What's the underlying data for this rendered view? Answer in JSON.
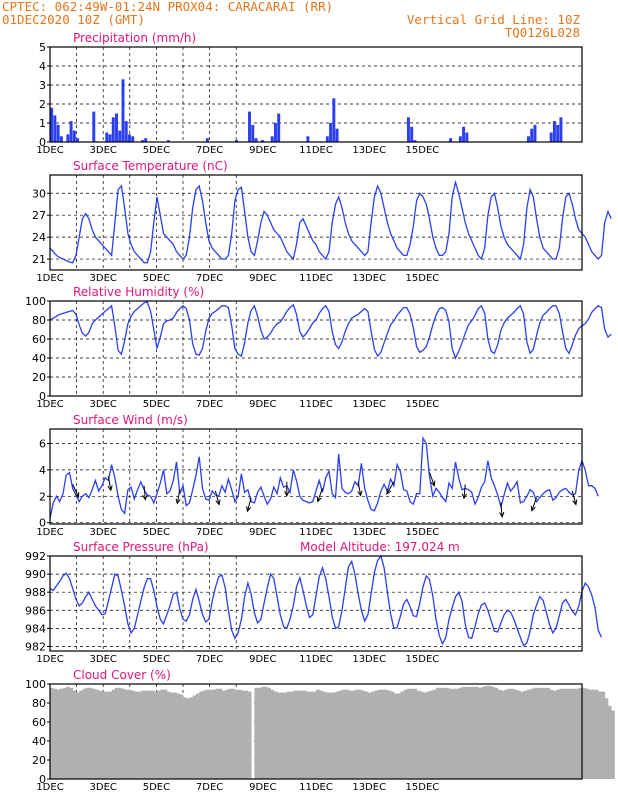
{
  "header": {
    "line1_left": "CPTEC:   062:49W-01:24N   PROX04: CARACARAI (RR)",
    "line2_left": "01DEC2020 10Z (GMT)",
    "line2_right": "Vertical Grid Line: 10Z",
    "line3_right": "TQ0126L028"
  },
  "colors": {
    "header": "#e8751a",
    "title": "#e0157a",
    "series": "#2c3ff0",
    "cloud": "#b0b0b0",
    "frame": "#000000"
  },
  "x_tick_labels": [
    "1DEC",
    "3DEC",
    "5DEC",
    "7DEC",
    "9DEC",
    "11DEC",
    "13DEC",
    "15DEC"
  ],
  "x_axis_start": "1DEC 10Z",
  "chart_data": [
    {
      "id": "precip",
      "type": "bar",
      "title": "Precipitation (mm/h)",
      "ylim": [
        0,
        5
      ],
      "yticks": [
        "0",
        "1",
        "2",
        "3",
        "4",
        "5"
      ],
      "x_start": "01DEC2020 10Z",
      "step_hours": 3,
      "values": [
        1.8,
        1.4,
        0.9,
        0.3,
        0.0,
        0.4,
        1.1,
        0.6,
        0.2,
        0.0,
        0.0,
        0.0,
        0.0,
        1.6,
        0.0,
        0.0,
        0.0,
        0.5,
        0.4,
        1.3,
        1.5,
        0.6,
        3.3,
        1.1,
        0.4,
        0.3,
        0.0,
        0.0,
        0.1,
        0.2,
        0.0,
        0.0,
        0.0,
        0.0,
        0.0,
        0.0,
        0.1,
        0.0,
        0.0,
        0.0,
        0.0,
        0.0,
        0.0,
        0.0,
        0.0,
        0.0,
        0.0,
        0.0,
        0.2,
        0.0,
        0.0,
        0.0,
        0.0,
        0.0,
        0.0,
        0.0,
        0.0,
        0.1,
        0.0,
        0.0,
        0.0,
        1.6,
        0.9,
        0.2,
        0.0,
        0.1,
        0.0,
        0.0,
        0.3,
        1.0,
        1.5,
        0.0,
        0.0,
        0.0,
        0.0,
        0.0,
        0.0,
        0.0,
        0.0,
        0.3,
        0.0,
        0.0,
        0.0,
        0.0,
        0.0,
        0.3,
        1.0,
        2.3,
        0.7,
        0.0,
        0.0,
        0.0,
        0.0,
        0.0,
        0.0,
        0.0,
        0.0,
        0.0,
        0.0,
        0.0,
        0.0,
        0.0,
        0.0,
        0.0,
        0.0,
        0.0,
        0.0,
        0.0,
        0.0,
        0.0,
        1.3,
        0.8,
        0.1,
        0.0,
        0.0,
        0.0,
        0.0,
        0.0,
        0.0,
        0.0,
        0.0,
        0.0,
        0.0,
        0.2,
        0.0,
        0.0,
        0.3,
        0.8,
        0.5,
        0.0,
        0.0,
        0.0,
        0.0,
        0.0,
        0.0,
        0.0,
        0.0,
        0.0,
        0.0,
        0.0,
        0.0,
        0.0,
        0.0,
        0.0,
        0.0,
        0.0,
        0.0,
        0.3,
        0.7,
        0.9,
        0.0,
        0.0,
        0.0,
        0.0,
        0.5,
        1.1,
        0.9,
        1.3,
        0.0,
        0.0
      ],
      "ylabel": ""
    },
    {
      "id": "temp",
      "type": "line",
      "title": "Surface Temperature (nC)",
      "ylim": [
        19.5,
        32.5
      ],
      "yticks": [
        "21",
        "24",
        "27",
        "30"
      ],
      "ytick_values": [
        21,
        24,
        27,
        30
      ],
      "x_start": "01DEC2020 10Z",
      "step_hours": 3,
      "values": [
        22.5,
        22.0,
        21.5,
        21.2,
        21.0,
        20.8,
        20.6,
        20.5,
        21.5,
        24.0,
        26.5,
        27.2,
        26.5,
        25.0,
        24.0,
        23.5,
        23.0,
        22.5,
        22.0,
        21.5,
        26.0,
        30.5,
        31.0,
        28.0,
        24.5,
        23.0,
        22.0,
        21.5,
        21.0,
        20.5,
        20.5,
        22.0,
        26.0,
        29.5,
        27.0,
        24.5,
        24.0,
        23.5,
        23.0,
        22.0,
        21.5,
        21.0,
        21.5,
        24.0,
        28.0,
        30.5,
        31.0,
        29.0,
        26.0,
        23.5,
        22.5,
        22.0,
        21.5,
        21.0,
        21.0,
        21.5,
        24.5,
        29.0,
        30.5,
        30.8,
        27.5,
        24.0,
        22.0,
        21.5,
        23.5,
        26.0,
        27.5,
        27.0,
        26.0,
        25.0,
        24.5,
        24.0,
        23.0,
        22.0,
        21.5,
        21.0,
        23.0,
        26.0,
        26.5,
        25.5,
        24.5,
        23.5,
        23.0,
        22.0,
        21.5,
        21.0,
        22.0,
        26.0,
        28.5,
        29.5,
        28.0,
        26.0,
        24.5,
        23.5,
        23.0,
        22.5,
        22.0,
        21.5,
        22.0,
        26.0,
        29.5,
        31.0,
        30.0,
        28.0,
        26.0,
        24.5,
        23.5,
        22.5,
        22.0,
        21.5,
        21.5,
        23.0,
        25.5,
        29.0,
        30.0,
        29.5,
        28.5,
        26.5,
        24.0,
        22.5,
        21.5,
        21.5,
        22.0,
        24.5,
        29.5,
        31.5,
        30.0,
        28.0,
        26.0,
        24.5,
        23.5,
        22.5,
        21.5,
        21.0,
        22.5,
        27.0,
        29.5,
        30.0,
        28.0,
        25.5,
        24.0,
        23.0,
        22.5,
        22.0,
        21.5,
        21.0,
        23.0,
        28.0,
        30.5,
        29.5,
        26.5,
        24.0,
        22.5,
        22.0,
        21.5,
        21.0,
        21.0,
        22.5,
        26.5,
        29.5,
        30.0,
        28.5,
        26.5,
        25.0,
        24.5,
        24.0,
        23.0,
        22.0,
        21.5,
        21.0,
        21.5,
        26.0,
        27.5,
        26.5
      ],
      "ylabel": ""
    },
    {
      "id": "rh",
      "type": "line",
      "title": "Relative Humidity (%)",
      "ylim": [
        0,
        100
      ],
      "yticks": [
        "0",
        "20",
        "40",
        "60",
        "80",
        "100"
      ],
      "ytick_values": [
        0,
        20,
        40,
        60,
        80,
        100
      ],
      "x_start": "01DEC2020 10Z",
      "step_hours": 3,
      "values": [
        80,
        82,
        84,
        86,
        87,
        88,
        89,
        90,
        86,
        75,
        66,
        63,
        67,
        76,
        80,
        83,
        86,
        89,
        92,
        95,
        73,
        48,
        44,
        58,
        76,
        84,
        89,
        92,
        95,
        98,
        99,
        89,
        70,
        50,
        62,
        76,
        79,
        80,
        82,
        88,
        92,
        95,
        92,
        80,
        55,
        44,
        43,
        50,
        68,
        82,
        87,
        89,
        92,
        95,
        95,
        93,
        74,
        50,
        44,
        42,
        56,
        77,
        90,
        95,
        84,
        69,
        60,
        62,
        66,
        72,
        76,
        78,
        83,
        89,
        93,
        96,
        86,
        68,
        62,
        66,
        71,
        77,
        80,
        87,
        92,
        95,
        89,
        68,
        54,
        50,
        57,
        68,
        76,
        82,
        84,
        86,
        89,
        92,
        89,
        68,
        49,
        42,
        46,
        56,
        66,
        75,
        79,
        85,
        89,
        93,
        93,
        86,
        72,
        52,
        46,
        48,
        52,
        62,
        75,
        85,
        92,
        93,
        90,
        78,
        50,
        40,
        47,
        56,
        66,
        75,
        79,
        85,
        92,
        95,
        87,
        60,
        47,
        45,
        54,
        69,
        77,
        82,
        85,
        88,
        92,
        95,
        86,
        57,
        45,
        49,
        64,
        77,
        85,
        88,
        92,
        95,
        95,
        87,
        68,
        50,
        45,
        54,
        64,
        71,
        74,
        76,
        81,
        88,
        92,
        95,
        93,
        70,
        62,
        65
      ],
      "ylabel": ""
    },
    {
      "id": "wind",
      "type": "line",
      "title": "Surface Wind (m/s)",
      "ylim": [
        -0.1,
        7.1
      ],
      "yticks": [
        "0",
        "2",
        "4",
        "6"
      ],
      "ytick_values": [
        0,
        2,
        4,
        6
      ],
      "x_start": "01DEC2020 10Z",
      "step_hours": 3,
      "values": [
        0.3,
        1.5,
        2.0,
        1.6,
        2.2,
        3.6,
        3.8,
        2.6,
        2.1,
        1.6,
        2.0,
        2.2,
        1.9,
        2.5,
        3.2,
        2.4,
        2.8,
        3.4,
        3.2,
        4.4,
        3.4,
        2.0,
        1.0,
        0.7,
        2.5,
        2.7,
        1.8,
        2.5,
        3.1,
        2.5,
        2.1,
        2.0,
        1.5,
        2.2,
        3.0,
        4.0,
        2.2,
        2.4,
        3.2,
        4.6,
        2.2,
        2.8,
        1.3,
        1.5,
        2.5,
        3.6,
        5.0,
        2.6,
        1.8,
        1.7,
        2.4,
        2.1,
        2.0,
        2.8,
        2.3,
        3.3,
        2.5,
        1.6,
        2.0,
        3.7,
        2.3,
        2.5,
        1.6,
        1.5,
        2.3,
        2.7,
        2.0,
        1.4,
        1.8,
        2.7,
        2.2,
        3.4,
        2.7,
        2.8,
        2.3,
        4.0,
        3.2,
        2.0,
        1.7,
        1.6,
        1.5,
        1.6,
        2.4,
        3.2,
        2.3,
        3.4,
        3.9,
        2.2,
        1.9,
        5.2,
        2.6,
        2.3,
        2.2,
        2.4,
        3.1,
        2.8,
        4.5,
        2.6,
        1.7,
        1.0,
        0.9,
        1.5,
        2.4,
        2.9,
        2.4,
        3.3,
        2.8,
        4.4,
        3.9,
        2.5,
        2.4,
        1.6,
        1.4,
        2.2,
        2.2,
        6.4,
        6.0,
        3.5,
        2.0,
        2.6,
        2.3,
        1.9,
        1.6,
        3.0,
        2.6,
        4.6,
        3.4,
        2.5,
        2.6,
        2.5,
        2.3,
        1.4,
        1.9,
        2.7,
        3.1,
        4.7,
        3.4,
        2.8,
        2.1,
        1.2,
        2.1,
        3.0,
        2.4,
        2.7,
        3.1,
        1.5,
        1.6,
        2.0,
        2.5,
        2.3,
        1.6,
        1.9,
        2.2,
        2.4,
        2.5,
        1.7,
        1.9,
        2.3,
        2.5,
        2.6,
        2.3,
        2.1,
        2.2,
        4.0,
        4.7,
        4.0,
        2.8,
        2.8,
        2.6,
        2.0
      ],
      "ylabel": "",
      "wind_barbs": [
        {
          "i": 7,
          "dir_deg": 155
        },
        {
          "i": 18,
          "dir_deg": 170
        },
        {
          "i": 29,
          "dir_deg": 175
        },
        {
          "i": 40,
          "dir_deg": 190
        },
        {
          "i": 51,
          "dir_deg": 165
        },
        {
          "i": 62,
          "dir_deg": 195
        },
        {
          "i": 73,
          "dir_deg": 180
        },
        {
          "i": 84,
          "dir_deg": 200
        },
        {
          "i": 95,
          "dir_deg": 170
        },
        {
          "i": 106,
          "dir_deg": 210
        },
        {
          "i": 117,
          "dir_deg": 160
        },
        {
          "i": 128,
          "dir_deg": 185
        },
        {
          "i": 139,
          "dir_deg": 175
        },
        {
          "i": 150,
          "dir_deg": 200
        },
        {
          "i": 161,
          "dir_deg": 165
        }
      ]
    },
    {
      "id": "pres",
      "type": "line",
      "title": "Surface Pressure (hPa)",
      "subtitle": "Model Altitude: 197.024 m",
      "ylim": [
        981.5,
        992.0
      ],
      "yticks": [
        "982",
        "984",
        "986",
        "988",
        "990",
        "992"
      ],
      "ytick_values": [
        982,
        984,
        986,
        988,
        990,
        992
      ],
      "x_start": "01DEC2020 10Z",
      "step_hours": 3,
      "values": [
        988.4,
        988.2,
        988.7,
        989.2,
        989.8,
        990.1,
        989.5,
        988.4,
        987.2,
        986.5,
        986.8,
        987.5,
        988.0,
        987.2,
        986.5,
        986.0,
        985.5,
        985.6,
        987.0,
        988.5,
        990.0,
        989.8,
        988.2,
        986.5,
        984.5,
        983.5,
        984.0,
        985.5,
        987.0,
        988.5,
        989.5,
        989.5,
        988.2,
        986.4,
        985.0,
        984.5,
        985.5,
        986.5,
        987.8,
        988.0,
        986.2,
        985.0,
        984.8,
        985.5,
        987.2,
        988.3,
        987.0,
        985.5,
        984.7,
        985.0,
        987.0,
        988.5,
        989.7,
        989.9,
        988.5,
        986.0,
        983.8,
        982.9,
        983.5,
        985.0,
        987.5,
        989.0,
        987.8,
        985.7,
        984.6,
        985.0,
        986.8,
        988.5,
        990.0,
        989.5,
        987.5,
        985.5,
        984.2,
        984.0,
        985.0,
        986.5,
        988.6,
        989.6,
        988.2,
        986.5,
        985.2,
        985.5,
        987.6,
        989.7,
        990.7,
        989.5,
        987.5,
        985.3,
        984.0,
        984.2,
        986.0,
        988.4,
        990.8,
        991.4,
        990.0,
        987.8,
        986.0,
        984.8,
        985.5,
        987.8,
        990.2,
        991.5,
        992.0,
        990.7,
        988.0,
        985.6,
        984.0,
        984.1,
        985.3,
        986.7,
        987.2,
        986.4,
        985.4,
        985.3,
        986.8,
        988.6,
        989.8,
        989.4,
        987.6,
        985.0,
        983.2,
        982.3,
        983.0,
        985.0,
        986.3,
        987.5,
        988.0,
        987.0,
        984.5,
        983.0,
        982.9,
        984.2,
        985.6,
        986.6,
        986.8,
        986.0,
        984.8,
        983.7,
        983.6,
        984.6,
        985.5,
        986.0,
        985.8,
        985.0,
        984.0,
        983.0,
        982.1,
        982.4,
        983.7,
        985.5,
        986.6,
        987.5,
        987.1,
        985.8,
        984.4,
        983.5,
        984.0,
        985.4,
        986.8,
        987.2,
        986.6,
        985.9,
        985.5,
        986.5,
        988.1,
        989.0,
        988.6,
        987.7,
        986.3,
        983.8,
        983.0
      ],
      "ylabel": ""
    },
    {
      "id": "cloud",
      "type": "bar",
      "title": "Cloud Cover (%)",
      "ylim": [
        0,
        100
      ],
      "yticks": [
        "0",
        "20",
        "40",
        "60",
        "80",
        "100"
      ],
      "ytick_values": [
        0,
        20,
        40,
        60,
        80,
        100
      ],
      "x_start": "01DEC2020 10Z",
      "step_hours": 3,
      "values": [
        96,
        95,
        94,
        95,
        96,
        97,
        96,
        93,
        91,
        93,
        95,
        96,
        96,
        95,
        94,
        93,
        92,
        92,
        92,
        94,
        96,
        96,
        95,
        94,
        94,
        93,
        92,
        92,
        93,
        93,
        93,
        93,
        92,
        93,
        94,
        94,
        92,
        91,
        91,
        90,
        89,
        86,
        85,
        86,
        88,
        90,
        92,
        93,
        94,
        94,
        94,
        95,
        95,
        93,
        94,
        95,
        95,
        94,
        94,
        93,
        93,
        92,
        0,
        96,
        96,
        97,
        97,
        96,
        94,
        92,
        91,
        91,
        91,
        92,
        92,
        93,
        93,
        93,
        93,
        92,
        92,
        92,
        94,
        93,
        92,
        91,
        91,
        91,
        92,
        93,
        94,
        94,
        93,
        93,
        94,
        94,
        93,
        92,
        91,
        92,
        93,
        94,
        94,
        94,
        93,
        92,
        90,
        90,
        92,
        94,
        95,
        95,
        95,
        93,
        92,
        91,
        92,
        93,
        94,
        96,
        96,
        96,
        96,
        95,
        95,
        95,
        96,
        97,
        97,
        97,
        97,
        97,
        96,
        97,
        98,
        98,
        97,
        96,
        94,
        93,
        94,
        95,
        95,
        94,
        93,
        92,
        93,
        94,
        95,
        96,
        96,
        96,
        96,
        96,
        94,
        93,
        94,
        95,
        95,
        95,
        95,
        95,
        95,
        96,
        96,
        95,
        94,
        94,
        94,
        92,
        92,
        85,
        77,
        72
      ],
      "ylabel": ""
    }
  ]
}
